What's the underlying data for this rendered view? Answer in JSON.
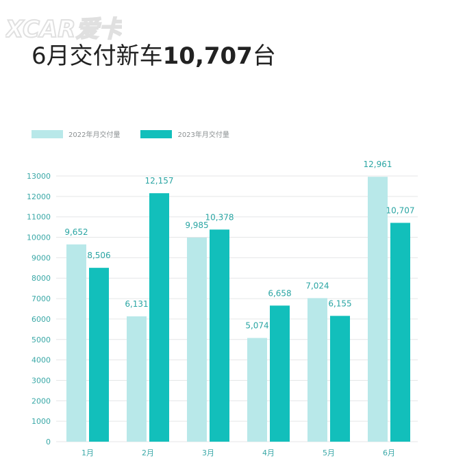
{
  "watermark": {
    "text": "XCAR 爱卡"
  },
  "headline": {
    "prefix": "6月交付新车",
    "number": "10,707",
    "suffix": "台"
  },
  "colors": {
    "series_2022": "#b8e8e9",
    "series_2023": "#12bfbb",
    "label": "#2aa5a3",
    "axis_text": "#3aa8a7",
    "grid": "#e4e6e7"
  },
  "chart_data": {
    "type": "bar",
    "categories": [
      "1月",
      "2月",
      "3月",
      "4月",
      "5月",
      "6月"
    ],
    "series": [
      {
        "name": "2022年月交付量",
        "values": [
          9652,
          6131,
          9985,
          5074,
          7024,
          12961
        ],
        "labels": [
          "9,652",
          "6,131",
          "9,985",
          "5,074",
          "7,024",
          "12,961"
        ]
      },
      {
        "name": "2023年月交付量",
        "values": [
          8506,
          12157,
          10378,
          6658,
          6155,
          10707
        ],
        "labels": [
          "8,506",
          "12,157",
          "10,378",
          "6,658",
          "6,155",
          "10,707"
        ]
      }
    ],
    "yticks": [
      0,
      1000,
      2000,
      3000,
      4000,
      5000,
      6000,
      7000,
      8000,
      9000,
      10000,
      11000,
      12000,
      13000
    ],
    "ylim": [
      0,
      13000
    ],
    "grid": true,
    "legend": "top-left"
  }
}
